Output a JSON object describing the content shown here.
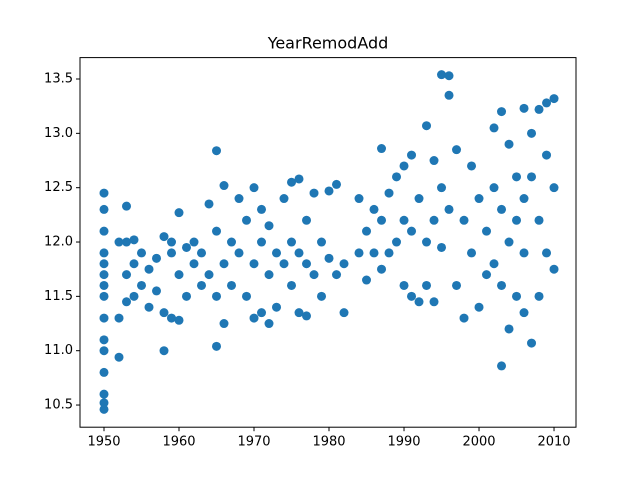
{
  "chart_data": {
    "type": "scatter",
    "title": "YearRemodAdd",
    "color": "#1f77b4",
    "xlim": [
      1946.8,
      2012.93
    ],
    "ylim": [
      10.296,
      13.697
    ],
    "xticks": [
      1950,
      1960,
      1970,
      1980,
      1990,
      2000,
      2010
    ],
    "yticks": [
      10.5,
      {
        "value": 11,
        "label": "11.0"
      },
      11.5,
      {
        "value": 12,
        "label": "12.0"
      },
      12.5,
      {
        "value": 13,
        "label": "13.0"
      },
      13.5
    ],
    "x": [
      1950,
      1950,
      1950,
      1950,
      1950,
      1950,
      1950,
      1950,
      1950,
      1950,
      1950,
      1950,
      1950,
      1950,
      1950,
      1952,
      1952,
      1952,
      1953,
      1953,
      1953,
      1953,
      1954,
      1954,
      1954,
      1955,
      1955,
      1956,
      1956,
      1957,
      1957,
      1958,
      1958,
      1958,
      1959,
      1959,
      1959,
      1960,
      1960,
      1960,
      1961,
      1961,
      1962,
      1962,
      1963,
      1963,
      1964,
      1964,
      1965,
      1965,
      1965,
      1965,
      1966,
      1966,
      1966,
      1967,
      1967,
      1968,
      1968,
      1969,
      1969,
      1970,
      1970,
      1970,
      1971,
      1971,
      1971,
      1972,
      1972,
      1972,
      1973,
      1973,
      1974,
      1974,
      1975,
      1975,
      1975,
      1976,
      1976,
      1976,
      1977,
      1977,
      1977,
      1978,
      1978,
      1979,
      1979,
      1980,
      1980,
      1981,
      1981,
      1982,
      1982,
      1984,
      1984,
      1985,
      1985,
      1986,
      1986,
      1987,
      1987,
      1987,
      1988,
      1988,
      1989,
      1989,
      1990,
      1990,
      1990,
      1991,
      1991,
      1991,
      1992,
      1992,
      1993,
      1993,
      1993,
      1994,
      1994,
      1994,
      1995,
      1995,
      1995,
      1996,
      1996,
      1996,
      1997,
      1997,
      1998,
      1998,
      1999,
      1999,
      2000,
      2000,
      2001,
      2001,
      2002,
      2002,
      2002,
      2003,
      2003,
      2003,
      2003,
      2004,
      2004,
      2004,
      2005,
      2005,
      2005,
      2006,
      2006,
      2006,
      2006,
      2007,
      2007,
      2007,
      2008,
      2008,
      2008,
      2009,
      2009,
      2009,
      2010,
      2010,
      2010
    ],
    "y": [
      10.46,
      10.52,
      10.6,
      10.8,
      11.0,
      11.1,
      11.3,
      11.5,
      11.7,
      11.9,
      12.1,
      12.3,
      12.45,
      11.6,
      11.8,
      11.3,
      12.0,
      10.94,
      12.33,
      11.7,
      11.45,
      12.0,
      11.8,
      11.5,
      12.02,
      11.9,
      11.6,
      11.75,
      11.4,
      11.85,
      11.55,
      11.0,
      12.05,
      11.35,
      11.3,
      11.9,
      12.0,
      12.27,
      11.7,
      11.28,
      11.95,
      11.5,
      11.8,
      12.0,
      11.6,
      11.9,
      12.35,
      11.7,
      12.84,
      11.04,
      12.1,
      11.5,
      12.52,
      11.25,
      11.8,
      12.0,
      11.6,
      12.4,
      11.9,
      11.5,
      12.2,
      12.5,
      11.3,
      11.8,
      11.35,
      12.0,
      12.3,
      11.25,
      11.7,
      12.15,
      11.9,
      11.4,
      12.4,
      11.8,
      12.55,
      11.6,
      12.0,
      12.58,
      11.35,
      11.9,
      11.32,
      12.2,
      11.8,
      12.45,
      11.7,
      11.5,
      12.0,
      12.47,
      11.85,
      12.53,
      11.7,
      11.35,
      11.8,
      12.4,
      11.9,
      11.65,
      12.1,
      12.3,
      11.9,
      12.86,
      11.75,
      12.2,
      12.45,
      11.9,
      12.6,
      12.0,
      12.7,
      11.6,
      12.2,
      12.8,
      11.5,
      12.1,
      11.45,
      12.4,
      13.07,
      12.0,
      11.6,
      12.75,
      11.45,
      12.2,
      13.54,
      12.5,
      11.95,
      13.53,
      13.35,
      12.3,
      12.85,
      11.6,
      11.3,
      12.2,
      12.7,
      11.9,
      12.4,
      11.4,
      12.1,
      11.7,
      13.05,
      12.5,
      11.8,
      13.2,
      10.86,
      12.3,
      11.6,
      12.9,
      11.2,
      12.0,
      12.6,
      11.5,
      12.2,
      13.23,
      11.35,
      12.4,
      11.9,
      13.0,
      11.07,
      12.6,
      13.22,
      12.2,
      11.5,
      13.28,
      12.8,
      11.9,
      13.32,
      12.5,
      11.75
    ]
  }
}
